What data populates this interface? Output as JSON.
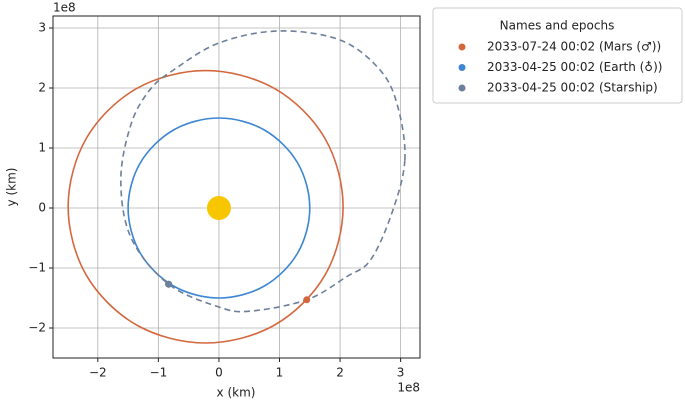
{
  "chart_data": {
    "type": "orbit",
    "xlabel": "x (km)",
    "ylabel": "y (km)",
    "x_offset": "1e8",
    "y_offset": "1e8",
    "xlim": [
      -2.74,
      3.32
    ],
    "ylim": [
      -2.5,
      3.2
    ],
    "xticks": [
      {
        "value": -2,
        "label": "−2"
      },
      {
        "value": -1,
        "label": "−1"
      },
      0,
      1,
      2,
      3
    ],
    "yticks": [
      {
        "value": -2,
        "label": "−2"
      },
      {
        "value": -1,
        "label": "−1"
      },
      0,
      1,
      2,
      3
    ],
    "grid": true,
    "legend": "outside right",
    "legend_title": "Names and epochs",
    "sun": {
      "x": 0,
      "y": 0,
      "color": "#f7c600"
    },
    "series": [
      {
        "name": "2033-07-24 00:02 (Mars (♂))",
        "color": "#d3683f",
        "style": "solid",
        "x": [
          2.05,
          1.75,
          0.92,
          -0.22,
          -1.36,
          -2.19,
          -2.49,
          -2.19,
          -1.36,
          -0.22,
          0.92,
          1.75,
          2.05
        ],
        "y": [
          0.02,
          1.16,
          1.99,
          2.29,
          1.99,
          1.16,
          0.02,
          -1.12,
          -1.95,
          -2.25,
          -1.95,
          -1.12,
          0.02
        ],
        "marker_x": 1.45,
        "marker_y": -1.53
      },
      {
        "name": "2033-04-25 00:02 (Earth (♁))",
        "color": "#3c86d3",
        "style": "solid",
        "x": [
          1.5,
          1.3,
          0.75,
          0,
          -0.75,
          -1.3,
          -1.5,
          -1.3,
          -0.75,
          0,
          0.75,
          1.3,
          1.5
        ],
        "y": [
          0,
          0.75,
          1.3,
          1.5,
          1.3,
          0.75,
          0,
          -0.75,
          -1.3,
          -1.5,
          -1.3,
          -0.75,
          0
        ],
        "marker_x": -0.83,
        "marker_y": -1.27
      },
      {
        "name": "2033-04-25 00:02 (Starship)",
        "color": "#6d7f99",
        "style": "dashed",
        "x": [
          3.07,
          2.95,
          2.66,
          2.0,
          0.98,
          0.0,
          -0.75,
          -1.14,
          -1.45,
          -1.62,
          -1.45,
          -0.83,
          0.0,
          0.51,
          1.45,
          2.1,
          2.5,
          2.85,
          3.07
        ],
        "y": [
          0.8,
          1.7,
          2.3,
          2.8,
          2.95,
          2.75,
          2.3,
          1.97,
          1.4,
          0.47,
          -0.5,
          -1.27,
          -1.65,
          -1.72,
          -1.53,
          -1.15,
          -0.87,
          -0.1,
          0.8
        ],
        "marker_x": -0.83,
        "marker_y": -1.27
      }
    ]
  }
}
